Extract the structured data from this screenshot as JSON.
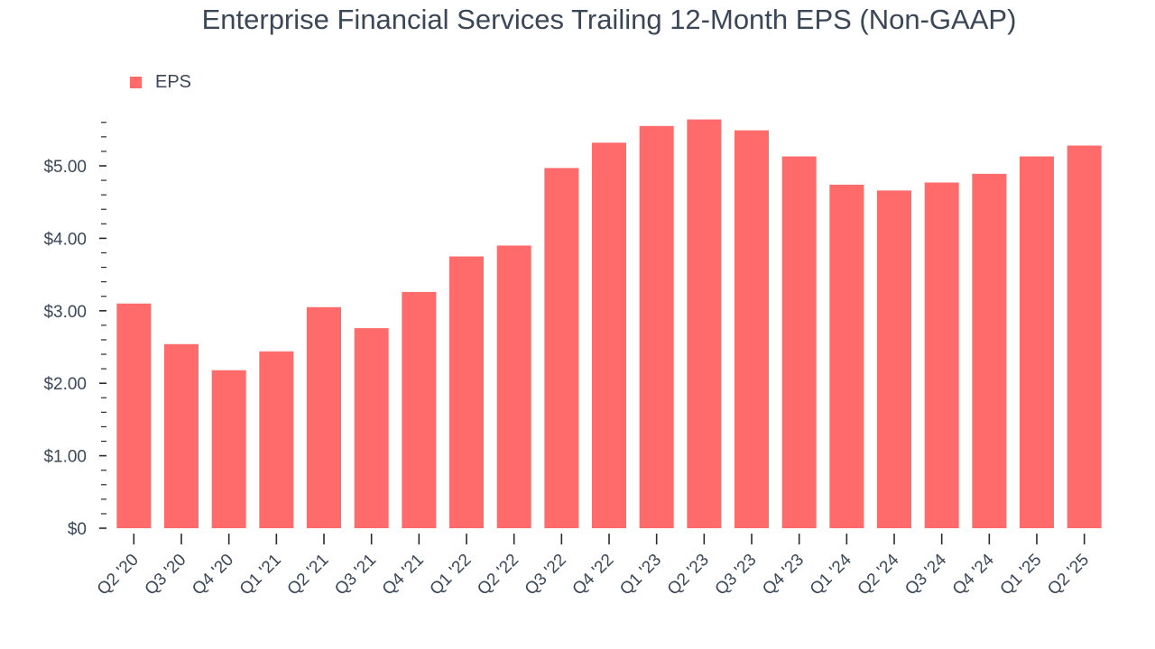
{
  "chart_data": {
    "type": "bar",
    "title": "Enterprise Financial Services Trailing 12-Month EPS (Non-GAAP)",
    "xlabel": "",
    "ylabel": "",
    "legend": {
      "position": "top-left",
      "entries": [
        "EPS"
      ]
    },
    "grid": false,
    "ylim": [
      0,
      5.6
    ],
    "yticks": [
      0,
      1,
      2,
      3,
      4,
      5
    ],
    "ytick_labels": [
      "$0",
      "$1.00",
      "$2.00",
      "$3.00",
      "$4.00",
      "$5.00"
    ],
    "categories": [
      "Q2 '20",
      "Q3 '20",
      "Q4 '20",
      "Q1 '21",
      "Q2 '21",
      "Q3 '21",
      "Q4 '21",
      "Q1 '22",
      "Q2 '22",
      "Q3 '22",
      "Q4 '22",
      "Q1 '23",
      "Q2 '23",
      "Q3 '23",
      "Q4 '23",
      "Q1 '24",
      "Q2 '24",
      "Q3 '24",
      "Q4 '24",
      "Q1 '25",
      "Q2 '25"
    ],
    "series": [
      {
        "name": "EPS",
        "color": "#ff6b6b",
        "values": [
          3.1,
          2.54,
          2.18,
          2.44,
          3.05,
          2.76,
          3.26,
          3.75,
          3.9,
          4.97,
          5.32,
          5.55,
          5.64,
          5.49,
          5.13,
          4.74,
          4.66,
          4.77,
          4.89,
          5.13,
          5.28
        ]
      }
    ]
  }
}
